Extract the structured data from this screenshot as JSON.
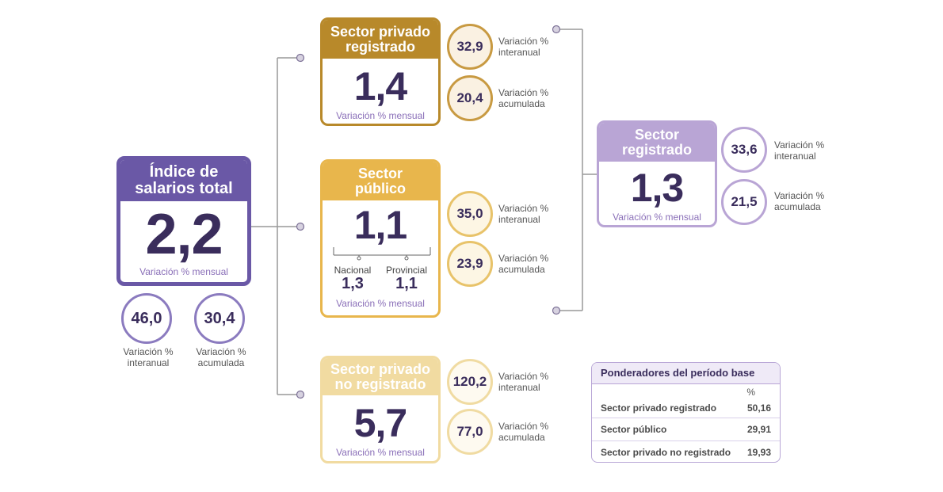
{
  "total": {
    "title_line1": "Índice de",
    "title_line2": "salarios total",
    "value": "2,2",
    "caption": "Variación % mensual",
    "interanual": {
      "value": "46,0",
      "label_line1": "Variación %",
      "label_line2": "interanual"
    },
    "acumulada": {
      "value": "30,4",
      "label_line1": "Variación %",
      "label_line2": "acumulada"
    },
    "color": "#6a58a6"
  },
  "privado_registrado": {
    "title_line1": "Sector privado",
    "title_line2": "registrado",
    "value": "1,4",
    "caption": "Variación % mensual",
    "interanual": {
      "value": "32,9",
      "label_line1": "Variación %",
      "label_line2": "interanual"
    },
    "acumulada": {
      "value": "20,4",
      "label_line1": "Variación %",
      "label_line2": "acumulada"
    },
    "color": "#b8892a"
  },
  "publico": {
    "title_line1": "Sector",
    "title_line2": "público",
    "value": "1,1",
    "nacional_label": "Nacional",
    "nacional_value": "1,3",
    "provincial_label": "Provincial",
    "provincial_value": "1,1",
    "caption": "Variación % mensual",
    "interanual": {
      "value": "35,0",
      "label_line1": "Variación %",
      "label_line2": "interanual"
    },
    "acumulada": {
      "value": "23,9",
      "label_line1": "Variación %",
      "label_line2": "acumulada"
    },
    "color": "#e8b64c"
  },
  "no_registrado": {
    "title_line1": "Sector privado",
    "title_line2": "no registrado",
    "value": "5,7",
    "caption": "Variación % mensual",
    "interanual": {
      "value": "120,2",
      "label_line1": "Variación %",
      "label_line2": "interanual"
    },
    "acumulada": {
      "value": "77,0",
      "label_line1": "Variación %",
      "label_line2": "acumulada"
    },
    "color": "#f1dba1"
  },
  "registrado": {
    "title_line1": "Sector",
    "title_line2": "registrado",
    "value": "1,3",
    "caption": "Variación % mensual",
    "interanual": {
      "value": "33,6",
      "label_line1": "Variación %",
      "label_line2": "interanual"
    },
    "acumulada": {
      "value": "21,5",
      "label_line1": "Variación %",
      "label_line2": "acumulada"
    },
    "color": "#b9a5d5"
  },
  "ponderadores": {
    "title": "Ponderadores del período base",
    "unit": "%",
    "rows": [
      {
        "label": "Sector privado registrado",
        "value": "50,16"
      },
      {
        "label": "Sector público",
        "value": "29,91"
      },
      {
        "label": "Sector privado no registrado",
        "value": "19,93"
      }
    ]
  }
}
